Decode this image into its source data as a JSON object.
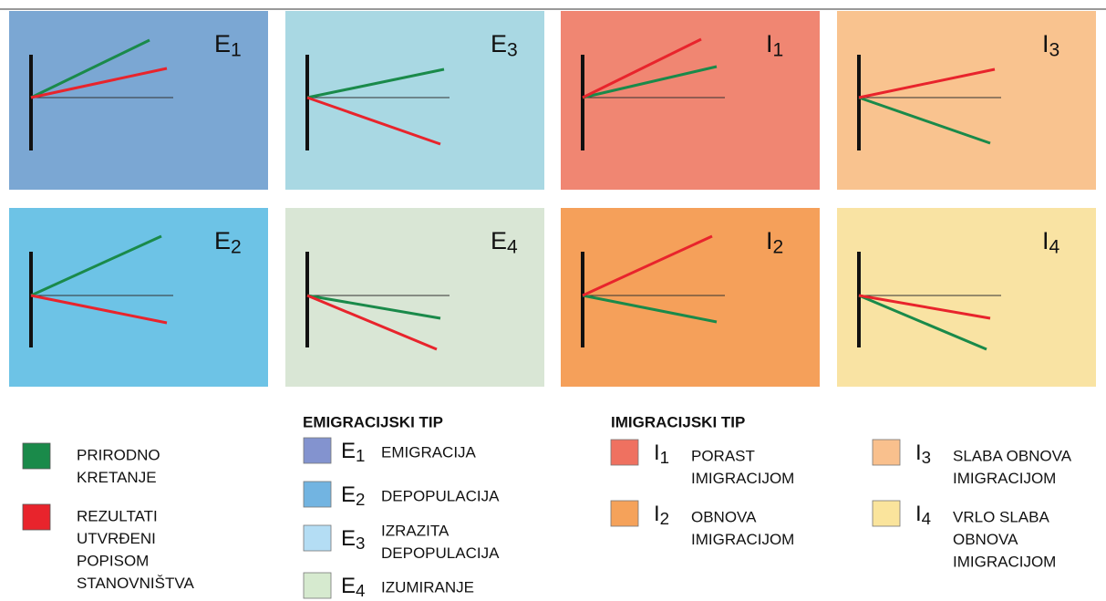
{
  "panels": [
    {
      "letter": "E",
      "sub": "1"
    },
    {
      "letter": "E",
      "sub": "3"
    },
    {
      "letter": "I",
      "sub": "1"
    },
    {
      "letter": "I",
      "sub": "3"
    },
    {
      "letter": "E",
      "sub": "2"
    },
    {
      "letter": "E",
      "sub": "4"
    },
    {
      "letter": "I",
      "sub": "2"
    },
    {
      "letter": "I",
      "sub": "4"
    }
  ],
  "legend": {
    "lines": [
      {
        "lines": [
          "PRIRODNO",
          "KRETANJE"
        ]
      },
      {
        "lines": [
          "REZULTATI",
          "UTVRĐENI",
          "POPISOM",
          "STANOVNIŠTVA"
        ]
      }
    ],
    "emigration": {
      "title": "EMIGRACIJSKI TIP",
      "items": [
        {
          "letter": "E",
          "sub": "1",
          "lines": [
            "EMIGRACIJA"
          ]
        },
        {
          "letter": "E",
          "sub": "2",
          "lines": [
            "DEPOPULACIJA"
          ]
        },
        {
          "letter": "E",
          "sub": "3",
          "lines": [
            "IZRAZITA",
            "DEPOPULACIJA"
          ]
        },
        {
          "letter": "E",
          "sub": "4",
          "lines": [
            "IZUMIRANJE"
          ]
        }
      ]
    },
    "immigration": {
      "title": "IMIGRACIJSKI TIP",
      "items": [
        {
          "letter": "I",
          "sub": "1",
          "lines": [
            "PORAST",
            "IMIGRACIJOM"
          ]
        },
        {
          "letter": "I",
          "sub": "2",
          "lines": [
            "OBNOVA",
            "IMIGRACIJOM"
          ]
        },
        {
          "letter": "I",
          "sub": "3",
          "lines": [
            "SLABA OBNOVA",
            "IMIGRACIJOM"
          ]
        },
        {
          "letter": "I",
          "sub": "4",
          "lines": [
            "VRLO SLABA",
            "OBNOVA",
            "IMIGRACIJOM"
          ]
        }
      ]
    }
  }
}
